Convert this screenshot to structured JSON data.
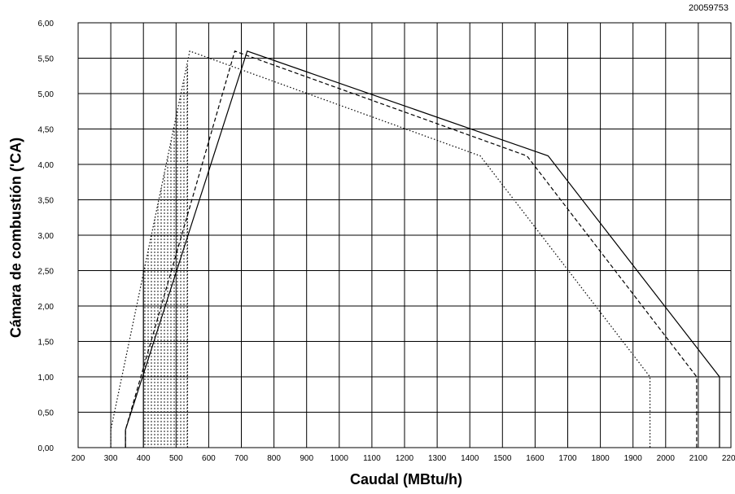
{
  "document_id": "20059753",
  "chart_data": {
    "type": "line",
    "title": "",
    "xlabel": "Caudal (MBtu/h)",
    "ylabel": "Cámara de combustión ('CA)",
    "xlim": [
      200,
      2200
    ],
    "ylim": [
      0,
      6
    ],
    "x_ticks": [
      "200",
      "300",
      "400",
      "500",
      "600",
      "700",
      "800",
      "900",
      "1000",
      "1100",
      "1200",
      "1300",
      "1400",
      "1500",
      "1600",
      "1700",
      "1800",
      "1900",
      "2000",
      "2100",
      "2200"
    ],
    "y_ticks": [
      "0,00",
      "0,50",
      "1,00",
      "1,50",
      "2,00",
      "2,50",
      "3,00",
      "3,50",
      "4,00",
      "4,50",
      "5,00",
      "5,50",
      "6,00"
    ],
    "grid": true,
    "shaded_region": {
      "x": [
        400,
        535
      ],
      "y": [
        0,
        5.4
      ],
      "pattern": "dotted",
      "upper_edge": [
        [
          400,
          2.5
        ],
        [
          535,
          5.4
        ]
      ]
    },
    "series": [
      {
        "style": "solid",
        "x": [
          345,
          345,
          718,
          1640,
          2165,
          2165
        ],
        "y": [
          0,
          0.25,
          5.6,
          4.12,
          1.0,
          0
        ]
      },
      {
        "style": "dashed",
        "x": [
          345,
          345,
          680,
          1575,
          2095,
          2095
        ],
        "y": [
          0,
          0.25,
          5.6,
          4.12,
          1.0,
          0
        ]
      },
      {
        "style": "dotted",
        "x": [
          300,
          300,
          542,
          1432,
          1952,
          1952
        ],
        "y": [
          0,
          0.25,
          5.6,
          4.12,
          1.0,
          0
        ]
      }
    ]
  }
}
